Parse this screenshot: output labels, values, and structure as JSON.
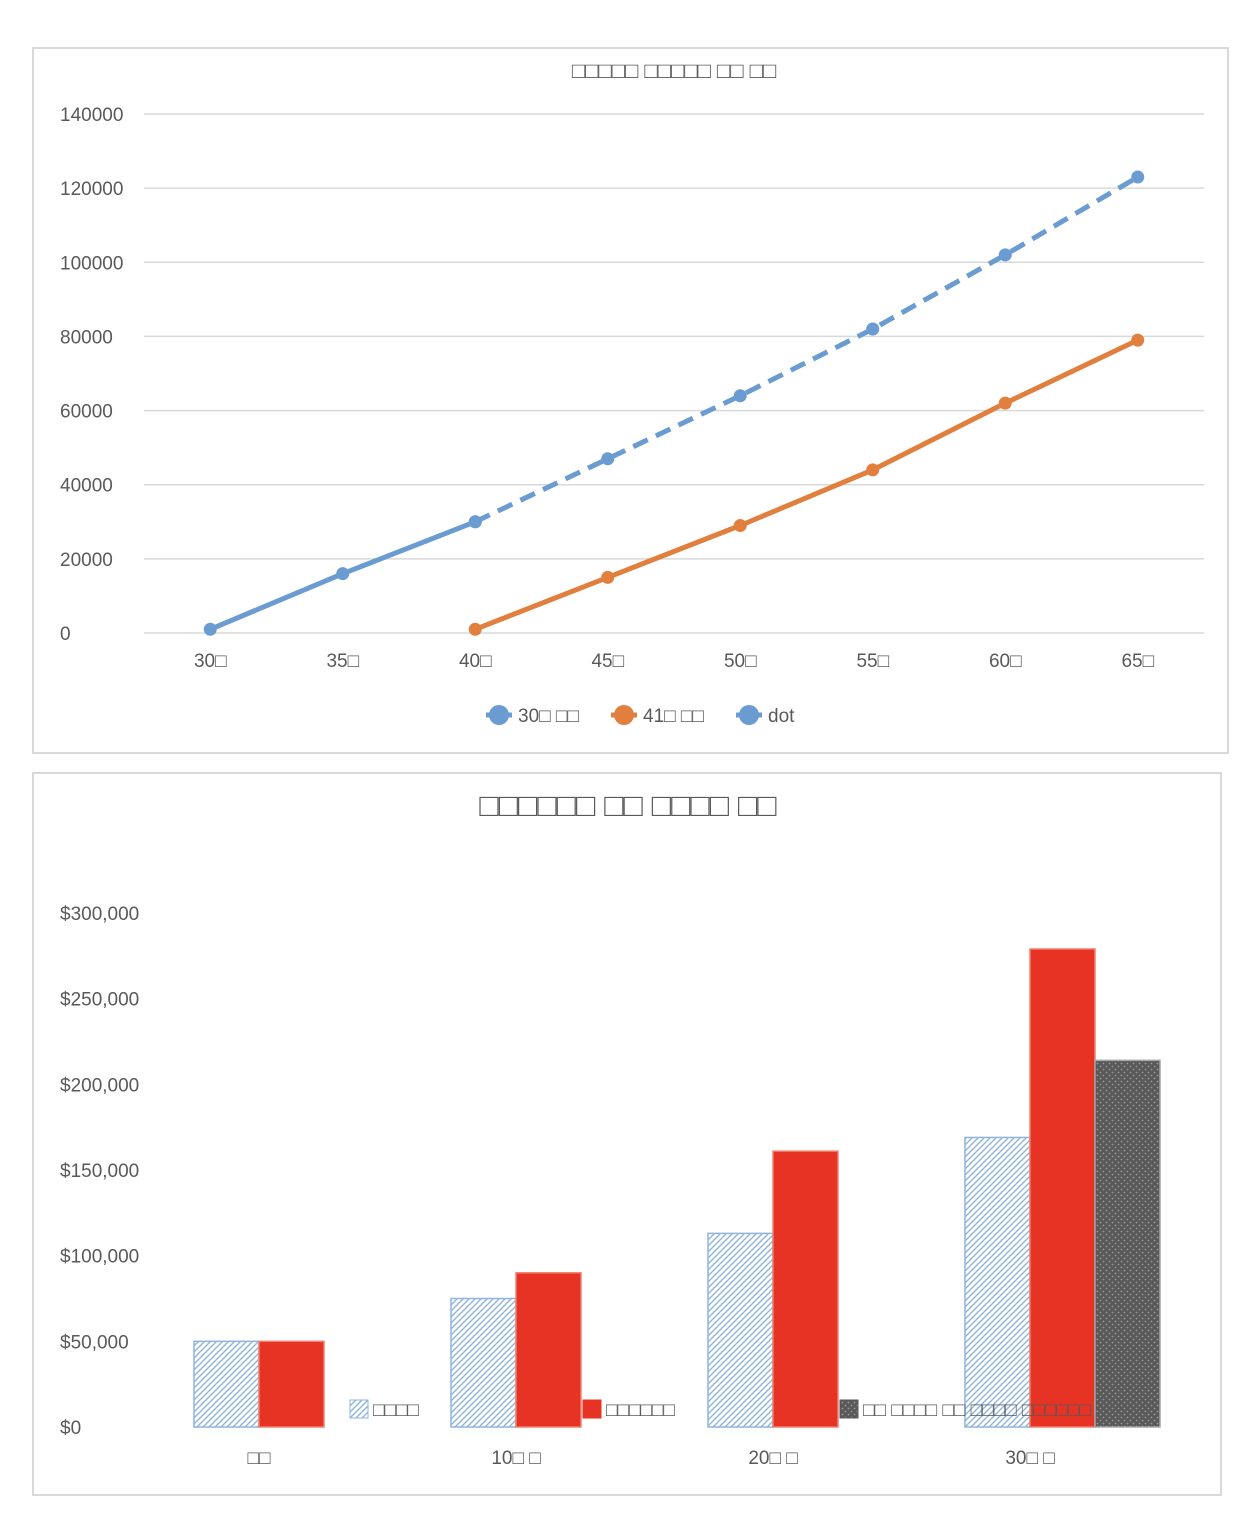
{
  "chart_data": [
    {
      "type": "line",
      "title": "□□□□□ □□□□□ □□ □□",
      "categories": [
        "30□",
        "35□",
        "40□",
        "45□",
        "50□",
        "55□",
        "60□",
        "65□"
      ],
      "ylim": [
        0,
        140000
      ],
      "yticks": [
        "0",
        "20000",
        "40000",
        "60000",
        "80000",
        "100000",
        "120000",
        "140000"
      ],
      "grid": true,
      "legend_position": "bottom",
      "series": [
        {
          "name": "30□ □□",
          "values": [
            1000,
            16000,
            30000,
            null,
            null,
            null,
            null,
            null
          ],
          "color": "#6a9bd1",
          "dash": false
        },
        {
          "name": "41□ □□",
          "values": [
            null,
            null,
            1000,
            15000,
            29000,
            44000,
            62000,
            79000
          ],
          "color": "#e07f3e",
          "dash": false
        },
        {
          "name": "dot",
          "values": [
            null,
            null,
            30000,
            47000,
            64000,
            82000,
            102000,
            123000
          ],
          "color": "#6a9bd1",
          "dash": true
        }
      ]
    },
    {
      "type": "bar",
      "title": "□□□□□□ □□ □□□□ □□",
      "categories": [
        "□□",
        "10□ □",
        "20□ □",
        "30□ □"
      ],
      "ylim": [
        0,
        300000
      ],
      "yticks": [
        "$0",
        "$50,000",
        "$100,000",
        "$150,000",
        "$200,000",
        "$250,000",
        "$300,000"
      ],
      "grid": false,
      "legend_position": "inside-bottom",
      "series": [
        {
          "name": "□□□□",
          "values": [
            50000,
            75000,
            113000,
            169000
          ],
          "color": "#8fb4dd",
          "pattern": "hatch"
        },
        {
          "name": "□□□□□□",
          "values": [
            50000,
            90000,
            161000,
            279000
          ],
          "color": "#e63323",
          "pattern": "solid"
        },
        {
          "name": "□□ □□□□ □□ □□□□ □□□□□□",
          "values": [
            null,
            null,
            null,
            214000
          ],
          "color": "#595959",
          "pattern": "dots"
        }
      ]
    }
  ]
}
